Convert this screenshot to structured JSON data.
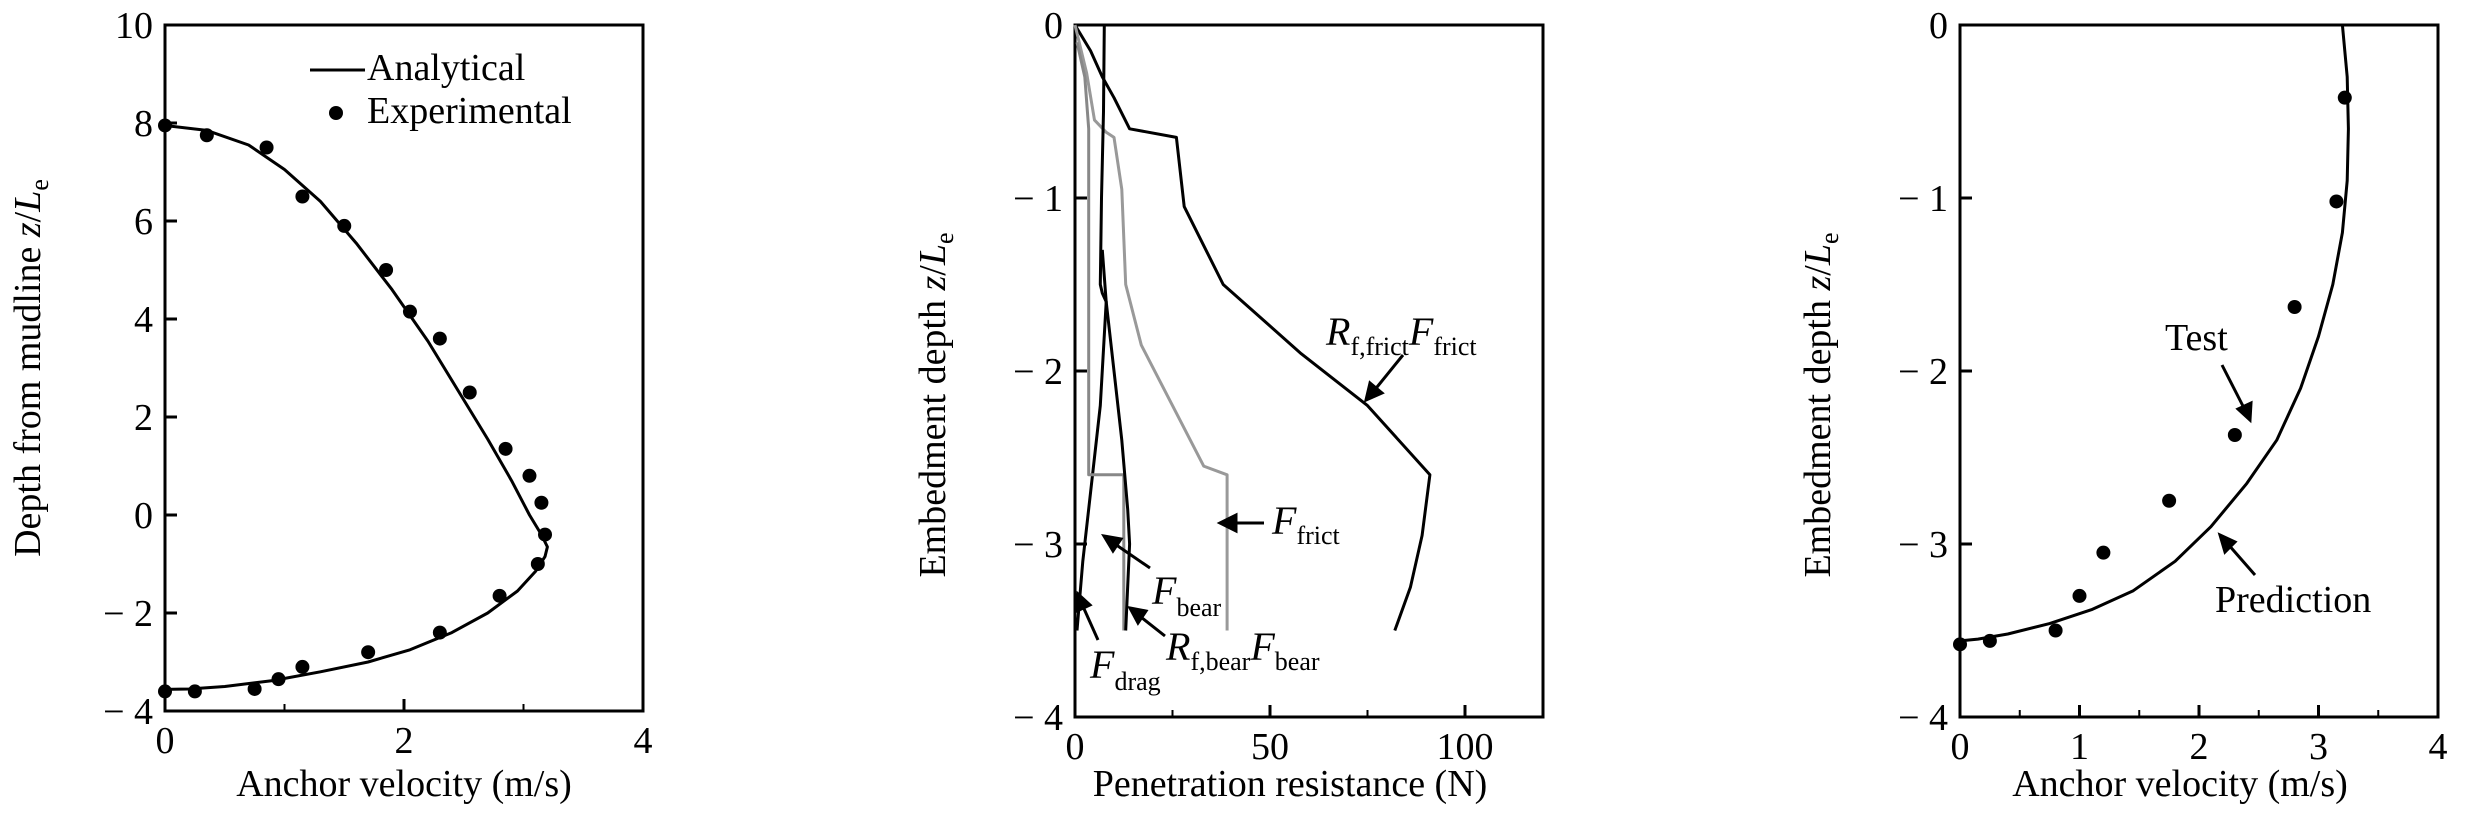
{
  "chart_data": [
    {
      "type": "line",
      "panel": "left",
      "xlabel": "Anchor velocity (m/s)",
      "ylabel": "Depth from mudline z/L_e",
      "ylabel_parts": {
        "main": "Depth from mudline ",
        "var": "z",
        "slash": "/",
        "L": "L",
        "sub": "e"
      },
      "xlim": [
        0,
        4
      ],
      "ylim": [
        -4,
        10
      ],
      "xticks": [
        0,
        2,
        4
      ],
      "xtick_labels": [
        "0",
        "2",
        "4"
      ],
      "yticks": [
        -4,
        -2,
        0,
        2,
        4,
        6,
        8,
        10
      ],
      "ytick_labels": [
        "− 4",
        "− 2",
        "0",
        "2",
        "4",
        "6",
        "8",
        "10"
      ],
      "legend": {
        "placement": "top-right",
        "entries": [
          "Analytical",
          "Experimental"
        ]
      },
      "series": [
        {
          "name": "Analytical",
          "style": "line",
          "color": "#000000",
          "x": [
            0,
            0.35,
            0.7,
            1.0,
            1.3,
            1.6,
            1.9,
            2.2,
            2.45,
            2.7,
            2.9,
            3.05,
            3.15,
            3.2,
            3.18,
            3.1,
            2.95,
            2.7,
            2.4,
            2.05,
            1.7,
            1.3,
            0.9,
            0.5,
            0.2,
            0
          ],
          "y": [
            7.95,
            7.85,
            7.55,
            7.05,
            6.4,
            5.55,
            4.6,
            3.55,
            2.55,
            1.55,
            0.7,
            0.0,
            -0.4,
            -0.65,
            -0.85,
            -1.15,
            -1.55,
            -2.0,
            -2.4,
            -2.75,
            -3.0,
            -3.2,
            -3.38,
            -3.5,
            -3.55,
            -3.56
          ]
        },
        {
          "name": "Experimental",
          "style": "markers",
          "color": "#000000",
          "x": [
            0.0,
            0.35,
            0.85,
            1.15,
            1.5,
            1.85,
            2.05,
            2.3,
            2.55,
            2.85,
            3.05,
            3.15,
            3.18,
            3.12,
            2.8,
            2.3,
            1.7,
            1.15,
            0.95,
            0.75,
            0.25,
            0.0
          ],
          "y": [
            7.95,
            7.75,
            7.5,
            6.5,
            5.9,
            5.0,
            4.15,
            3.6,
            2.5,
            1.35,
            0.8,
            0.25,
            -0.4,
            -1.0,
            -1.65,
            -2.4,
            -2.8,
            -3.1,
            -3.35,
            -3.55,
            -3.6,
            -3.6
          ]
        }
      ]
    },
    {
      "type": "line",
      "panel": "middle",
      "xlabel": "Penetration resistance (N)",
      "ylabel": "Embedment depth z/L_e",
      "ylabel_parts": {
        "main": "Embedment depth ",
        "var": "z",
        "slash": "/",
        "L": "L",
        "sub": "e"
      },
      "xlim": [
        0,
        120
      ],
      "ylim": [
        -4,
        0
      ],
      "xticks": [
        0,
        50,
        100
      ],
      "xtick_labels": [
        "0",
        "50",
        "100"
      ],
      "yticks": [
        0,
        -1,
        -2,
        -3,
        -4
      ],
      "ytick_labels": [
        "0",
        "− 1",
        "− 2",
        "− 3",
        "− 4"
      ],
      "series": [
        {
          "name": "R_f,frict F_frict",
          "color": "#000000",
          "x": [
            0,
            4,
            7,
            10,
            14,
            26,
            28,
            38,
            58,
            75,
            91,
            89,
            86,
            82
          ],
          "y": [
            0,
            -0.15,
            -0.3,
            -0.42,
            -0.6,
            -0.65,
            -1.05,
            -1.5,
            -1.9,
            -2.2,
            -2.6,
            -2.95,
            -3.25,
            -3.5
          ],
          "annotation": {
            "main": "R",
            "sub": "f,frict",
            "main2": "F",
            "sub2": "frict",
            "x": 58,
            "y": -1.85
          }
        },
        {
          "name": "F_frict",
          "color": "#999999",
          "x": [
            0,
            3,
            5,
            8,
            10,
            12,
            13,
            17,
            25,
            33,
            39,
            39
          ],
          "y": [
            0,
            -0.28,
            -0.55,
            -0.62,
            -0.65,
            -0.95,
            -1.5,
            -1.85,
            -2.2,
            -2.55,
            -2.6,
            -3.5
          ],
          "annotation": {
            "main": "F",
            "sub": "frict",
            "x": 52,
            "y": -3.05
          }
        },
        {
          "name": "F_bear",
          "color": "#000000",
          "x": [
            7.5,
            7.3,
            6.8,
            6.5,
            7.0,
            8.0,
            6.5,
            4.0,
            2.0,
            0.5
          ],
          "y": [
            0,
            -0.5,
            -1.0,
            -1.5,
            -1.55,
            -1.6,
            -2.2,
            -2.7,
            -3.1,
            -3.5
          ],
          "annotation": {
            "main": "F",
            "sub": "bear",
            "x": 21,
            "y": -3.35
          }
        },
        {
          "name": "F_drag",
          "color": "#888888",
          "x": [
            0.5,
            2.5,
            3.5,
            3.5,
            5.5,
            8.0,
            10.5,
            11.0,
            12.5,
            12.5
          ],
          "y": [
            -0.1,
            -0.3,
            -0.6,
            -2.6,
            -2.6,
            -2.6,
            -2.6,
            -2.6,
            -2.6,
            -3.5
          ],
          "annotation": {
            "main": "F",
            "sub": "drag",
            "x": 5,
            "y": -3.85
          }
        },
        {
          "name": "R_f,bear F_bear",
          "color": "#000000",
          "x": [
            7.0,
            8.0,
            10.0,
            12.0,
            13.5,
            14.0,
            13.0
          ],
          "y": [
            -1.3,
            -1.6,
            -2.0,
            -2.4,
            -2.8,
            -3.0,
            -3.5
          ],
          "annotation": {
            "main": "R",
            "sub": "f,bear",
            "main2": "F",
            "sub2": "bear",
            "x": 24,
            "y": -3.7
          }
        }
      ]
    },
    {
      "type": "line",
      "panel": "right",
      "xlabel": "Anchor velocity (m/s)",
      "ylabel": "Embedment depth z/L_e",
      "ylabel_parts": {
        "main": "Embedment depth ",
        "var": "z",
        "slash": "/",
        "L": "L",
        "sub": "e"
      },
      "xlim": [
        0,
        4
      ],
      "ylim": [
        -4,
        0
      ],
      "xticks": [
        0,
        1,
        2,
        3,
        4
      ],
      "xtick_labels": [
        "0",
        "1",
        "2",
        "3",
        "4"
      ],
      "yticks": [
        0,
        -1,
        -2,
        -3,
        -4
      ],
      "ytick_labels": [
        "0",
        "− 1",
        "− 2",
        "− 3",
        "− 4"
      ],
      "series": [
        {
          "name": "Prediction",
          "color": "#000000",
          "x": [
            3.2,
            3.24,
            3.25,
            3.24,
            3.2,
            3.12,
            3.0,
            2.85,
            2.65,
            2.4,
            2.1,
            1.8,
            1.45,
            1.1,
            0.75,
            0.4,
            0.15,
            0.0
          ],
          "y": [
            0,
            -0.3,
            -0.6,
            -0.9,
            -1.2,
            -1.5,
            -1.8,
            -2.1,
            -2.4,
            -2.65,
            -2.9,
            -3.1,
            -3.27,
            -3.38,
            -3.46,
            -3.52,
            -3.55,
            -3.56
          ],
          "annotation": {
            "label": "Prediction",
            "x": 2.15,
            "y": -3.3
          }
        },
        {
          "name": "Test",
          "style": "markers",
          "color": "#000000",
          "x": [
            3.22,
            3.15,
            2.8,
            2.3,
            1.75,
            1.2,
            1.0,
            0.8,
            0.25,
            0.0
          ],
          "y": [
            -0.42,
            -1.02,
            -1.63,
            -2.37,
            -2.75,
            -3.05,
            -3.3,
            -3.5,
            -3.56,
            -3.58
          ],
          "annotation": {
            "label": "Test",
            "x": 1.75,
            "y": -1.8
          }
        }
      ]
    }
  ]
}
